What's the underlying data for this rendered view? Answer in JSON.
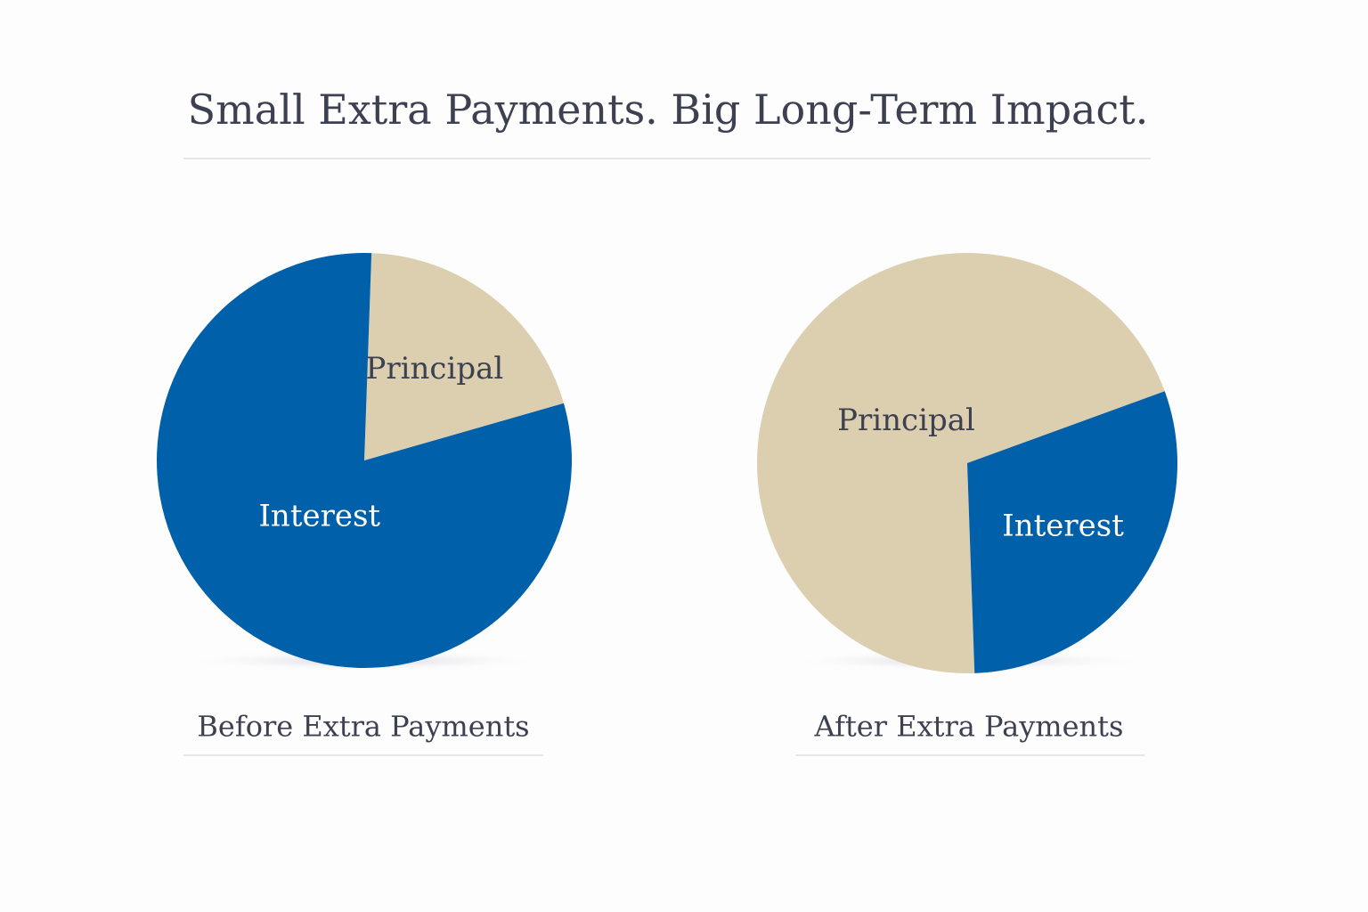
{
  "title": "Small Extra Payments. Big Long-Term Impact.",
  "chart_data": [
    {
      "type": "pie",
      "title": "Before Extra Payments",
      "categories": [
        "Principal",
        "Interest"
      ],
      "values": [
        20,
        80
      ],
      "colors": [
        "#dccfb0",
        "#0060aa"
      ],
      "label_colors": [
        "#3d4050",
        "#ffffff"
      ]
    },
    {
      "type": "pie",
      "title": "After Extra Payments",
      "categories": [
        "Principal",
        "Interest"
      ],
      "values": [
        70,
        30
      ],
      "colors": [
        "#dccfb0",
        "#0060aa"
      ],
      "label_colors": [
        "#3d4050",
        "#ffffff"
      ]
    }
  ]
}
